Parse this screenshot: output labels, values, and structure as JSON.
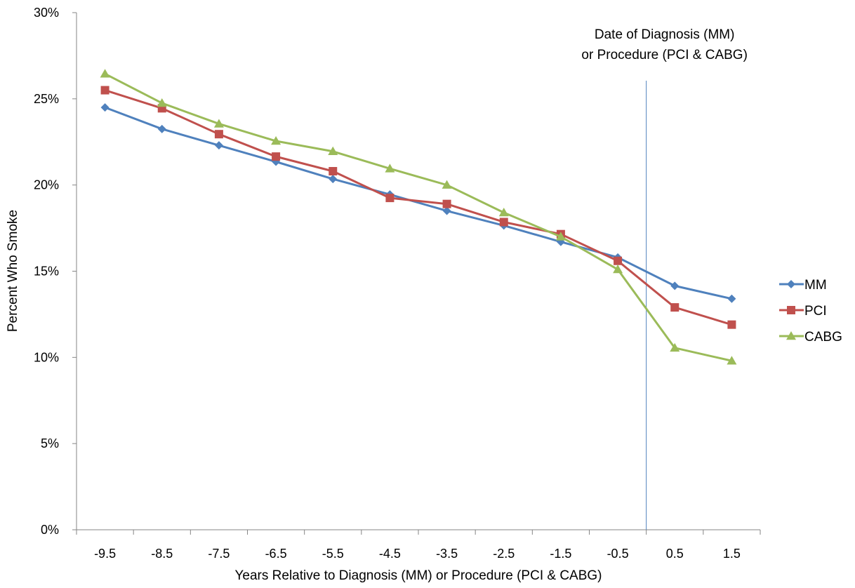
{
  "chart_data": {
    "type": "line",
    "title": "",
    "xlabel": "Years Relative to Diagnosis (MM) or Procedure (PCI & CABG)",
    "ylabel": "Percent Who Smoke",
    "categories": [
      "-9.5",
      "-8.5",
      "-7.5",
      "-6.5",
      "-5.5",
      "-4.5",
      "-3.5",
      "-2.5",
      "-1.5",
      "-0.5",
      "0.5",
      "1.5"
    ],
    "y_ticks": [
      "0%",
      "5%",
      "10%",
      "15%",
      "20%",
      "25%",
      "30%"
    ],
    "ylim": [
      0,
      0.3
    ],
    "y_format": "percent",
    "grid": false,
    "legend_position": "right",
    "series": [
      {
        "name": "MM",
        "color": "#4F81BD",
        "marker": "diamond",
        "values": [
          0.245,
          0.2325,
          0.223,
          0.2135,
          0.2035,
          0.1945,
          0.185,
          0.1765,
          0.167,
          0.158,
          0.1415,
          0.134
        ]
      },
      {
        "name": "PCI",
        "color": "#C0504D",
        "marker": "square",
        "values": [
          0.255,
          0.2445,
          0.2295,
          0.2165,
          0.208,
          0.1925,
          0.189,
          0.1785,
          0.1715,
          0.156,
          0.129,
          0.119
        ]
      },
      {
        "name": "CABG",
        "color": "#9BBB59",
        "marker": "triangle",
        "values": [
          0.2645,
          0.2475,
          0.2355,
          0.2255,
          0.2195,
          0.2095,
          0.2,
          0.184,
          0.17,
          0.151,
          0.1055,
          0.098
        ]
      }
    ],
    "reference_line": {
      "x_between": [
        "-0.5",
        "0.5"
      ],
      "color": "#4F81BD",
      "label_lines": [
        "Date of Diagnosis (MM)",
        "or Procedure (PCI & CABG)"
      ]
    }
  }
}
